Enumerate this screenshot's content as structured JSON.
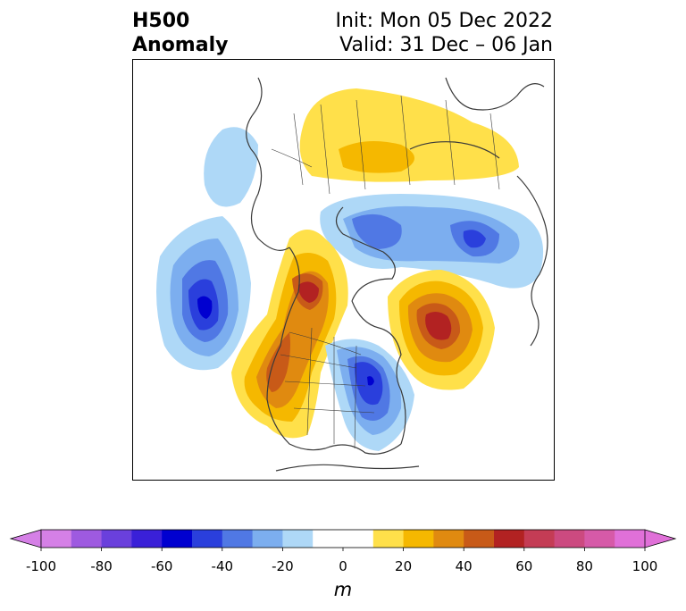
{
  "title": {
    "left_line1": "H500",
    "left_line2": "Anomaly",
    "right_line1": "Init: Mon 05 Dec 2022",
    "right_line2": "Valid: 31 Dec – 06 Jan"
  },
  "colorbar": {
    "unit": "m",
    "ticks": [
      "-100",
      "-80",
      "-60",
      "-40",
      "-20",
      "0",
      "20",
      "40",
      "60",
      "80",
      "100"
    ],
    "colors": [
      "#d580e6",
      "#9e5ae0",
      "#6a40dc",
      "#3a20d8",
      "#0000d0",
      "#2a3fdc",
      "#5078e4",
      "#7caeef",
      "#aed8f7",
      "#ffffff",
      "#ffffff",
      "#ffe04a",
      "#f5b800",
      "#e08a10",
      "#c85a18",
      "#b22222",
      "#c43c55",
      "#cc4a80",
      "#d65aa8",
      "#e070d8"
    ],
    "extend_min_color": "#d580e6",
    "extend_max_color": "#e070d8"
  },
  "map": {
    "projection": "north-polar-stereographic",
    "coastline_color": "#3a3a3a",
    "anomalies": [
      {
        "name": "gulf-of-alaska-trough",
        "min": -60
      },
      {
        "name": "western-north-america-ridge",
        "max": 55
      },
      {
        "name": "eastern-north-america-trough",
        "min": -60
      },
      {
        "name": "north-atlantic-ridge",
        "max": 60
      },
      {
        "name": "siberia-ridge",
        "max": 30
      },
      {
        "name": "arctic-trough",
        "min": -40
      },
      {
        "name": "bering-trough",
        "min": -20
      }
    ]
  }
}
